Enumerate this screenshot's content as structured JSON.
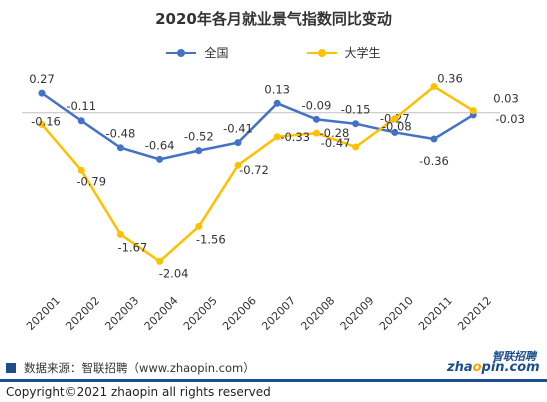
{
  "title": "2020年各月就业景气指数同比变动",
  "source_text": "数据来源：智联招聘（www.zhaopin.com）",
  "copyright_text": "Copyright©2021 zhaopin all rights reserved",
  "logo": {
    "cn": "智联招聘",
    "en_prefix": "zha",
    "en_o": "o",
    "en_suffix": "pin.com"
  },
  "colors": {
    "series_blue": "#4472c4",
    "series_yellow": "#ffc000",
    "brand": "#1b4d8f"
  },
  "chart_data": {
    "type": "line",
    "title": "2020年各月就业景气指数同比变动",
    "x": [
      "202001",
      "202002",
      "202003",
      "202004",
      "202005",
      "202006",
      "202007",
      "202008",
      "202009",
      "202010",
      "202011",
      "202012"
    ],
    "series": [
      {
        "name": "全国",
        "color": "#4472c4",
        "values": [
          0.27,
          -0.11,
          -0.48,
          -0.64,
          -0.52,
          -0.41,
          0.13,
          -0.09,
          -0.15,
          -0.27,
          -0.36,
          -0.03
        ],
        "labels": [
          "0.27",
          "-0.11",
          "-0.48",
          "-0.64",
          "-0.52",
          "-0.41",
          "0.13",
          "-0.09",
          "-0.15",
          "-0.27",
          "-0.36",
          "-0.03"
        ]
      },
      {
        "name": "大学生",
        "color": "#ffc000",
        "values": [
          -0.16,
          -0.79,
          -1.67,
          -2.04,
          -1.56,
          -0.72,
          -0.33,
          -0.28,
          -0.47,
          -0.08,
          0.36,
          0.03
        ],
        "labels": [
          "-0.16",
          "-0.79",
          "-1.67",
          "-2.04",
          "-1.56",
          "-0.72",
          "-0.33",
          "-0.28",
          "-0.47",
          "-0.08",
          "0.36",
          "0.03"
        ]
      }
    ],
    "ylim": [
      -2.2,
      0.45
    ],
    "grid": false,
    "legend": "top-center"
  }
}
